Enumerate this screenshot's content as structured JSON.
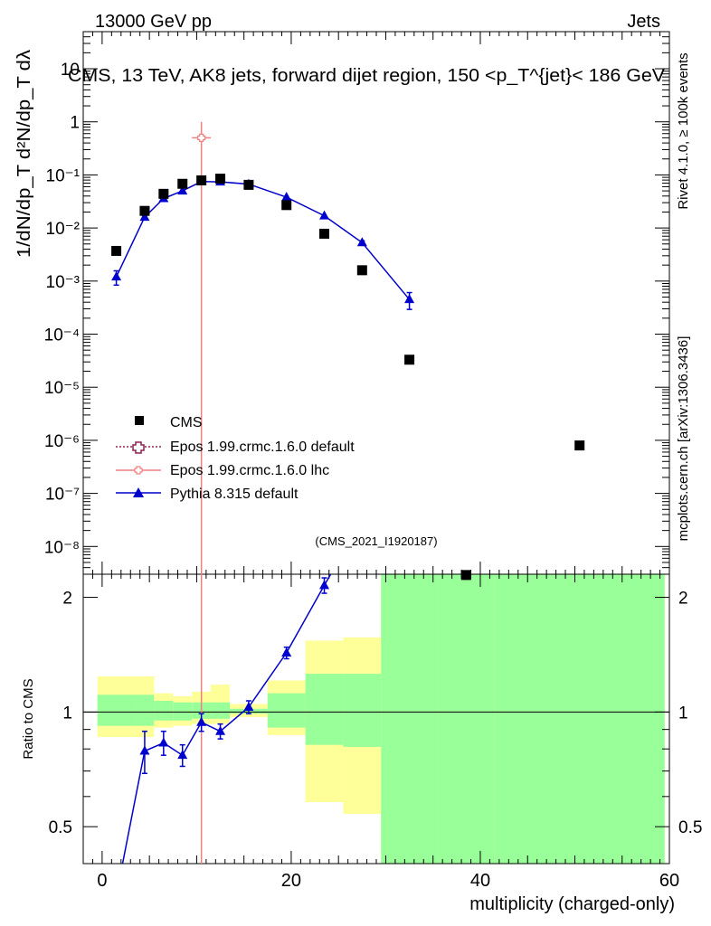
{
  "header": {
    "left": "13000 GeV pp",
    "right": "Jets"
  },
  "side": {
    "rivet": "Rivet 4.1.0, ≥ 100k events",
    "mcplots": "mcplots.cern.ch [arXiv:1306.3436]"
  },
  "chart_data": {
    "type": "scatter",
    "title": "CMS, 13 TeV, AK8 jets, forward dijet region, 150 <p_T^{jet}< 186 GeV",
    "analysis_tag": "(CMS_2021_I1920187)",
    "xlabel": "multiplicity (charged-only)",
    "ylabel_top": "1/dN/dp_T  d²N/dp_T dλ",
    "ylabel_bottom": "Ratio to CMS",
    "xlim": [
      -2,
      60
    ],
    "ylim_top": [
      3e-09,
      50
    ],
    "ylog_top": true,
    "ylim_bottom": [
      0.4,
      2.3
    ],
    "ylog_bottom": true,
    "x_ticks": [
      "0",
      "20",
      "40",
      "60"
    ],
    "y_ticks_top": [
      "10⁻⁸",
      "10⁻⁷",
      "10⁻⁶",
      "10⁻⁵",
      "10⁻⁴",
      "10⁻³",
      "10⁻²",
      "10⁻¹",
      "1",
      "10"
    ],
    "y_ticks_bottom": [
      "0.5",
      "1",
      "2"
    ],
    "legend": [
      {
        "label": "CMS",
        "color": "#000000",
        "marker": "square"
      },
      {
        "label": "Epos 1.99.crmc.1.6.0 default",
        "color": "#8b2252",
        "marker": "open-cross"
      },
      {
        "label": "Epos 1.99.crmc.1.6.0 lhc",
        "color": "#f08080",
        "marker": "open-cross"
      },
      {
        "label": "Pythia 8.315 default",
        "color": "#0000cc",
        "marker": "triangle"
      }
    ],
    "cms": {
      "x": [
        1.5,
        4.5,
        6.5,
        8.5,
        10.5,
        12.5,
        15.5,
        19.5,
        23.5,
        27.5,
        32.5,
        38.5,
        50.5
      ],
      "y": [
        0.0037,
        0.021,
        0.044,
        0.068,
        0.079,
        0.085,
        0.065,
        0.027,
        0.0078,
        0.0016,
        3.3e-05,
        2.9e-09,
        8e-07
      ]
    },
    "epos_lhc": {
      "x": 10.5,
      "y": 0.5,
      "yerr_low": 0.5,
      "yerr_high": 0.5,
      "xerr": 1
    },
    "pythia": {
      "x": [
        1.5,
        4.5,
        6.5,
        8.5,
        10.5,
        12.5,
        15.5,
        19.5,
        23.5,
        27.5,
        32.5
      ],
      "y": [
        0.0012,
        0.016,
        0.036,
        0.05,
        0.075,
        0.074,
        0.067,
        0.038,
        0.017,
        0.0053,
        0.00045
      ],
      "yerr_frac": [
        0.3,
        0.08,
        0.06,
        0.05,
        0.04,
        0.03,
        0.03,
        0.03,
        0.04,
        0.08,
        0.35
      ]
    },
    "ratio": {
      "x": [
        1.5,
        4.5,
        6.5,
        8.5,
        10.5,
        12.5,
        15.5,
        19.5,
        23.5
      ],
      "y": [
        0.33,
        0.79,
        0.83,
        0.77,
        0.94,
        0.89,
        1.03,
        1.43,
        2.15
      ],
      "yerr": [
        0.03,
        0.1,
        0.06,
        0.05,
        0.05,
        0.04,
        0.04,
        0.05,
        0.1
      ]
    },
    "bands": {
      "edges": [
        -0.5,
        3.5,
        5.5,
        7.5,
        9.5,
        11.5,
        13.5,
        17.5,
        21.5,
        25.5,
        29.5,
        35.5,
        41.5,
        59.5
      ],
      "yellow_low": [
        0.86,
        0.86,
        0.91,
        0.92,
        0.93,
        0.93,
        0.97,
        0.87,
        0.58,
        0.54,
        0.3,
        0.3,
        0.3
      ],
      "yellow_high": [
        1.24,
        1.24,
        1.12,
        1.1,
        1.13,
        1.18,
        1.05,
        1.21,
        1.54,
        1.57,
        3.0,
        3.0,
        3.0
      ],
      "green_low": [
        0.92,
        0.92,
        0.95,
        0.95,
        0.96,
        0.96,
        0.99,
        0.91,
        0.82,
        0.81,
        0.3,
        0.3,
        0.3
      ],
      "green_high": [
        1.11,
        1.11,
        1.07,
        1.06,
        1.06,
        1.06,
        1.02,
        1.12,
        1.26,
        1.26,
        3.0,
        3.0,
        3.0
      ],
      "colors": {
        "yellow": "#ffff99",
        "green": "#99ff99"
      }
    }
  }
}
